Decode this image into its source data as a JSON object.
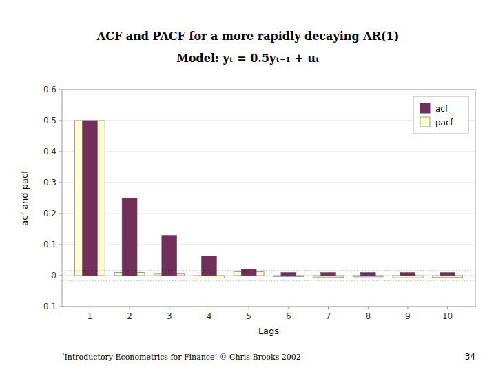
{
  "chart_data": {
    "type": "bar",
    "title": "ACF and PACF for a more rapidly decaying AR(1)",
    "subtitle": "Model: yₜ = 0.5yₜ₋₁ + uₜ",
    "x_label": "Lags",
    "y_label": "acf and pacf",
    "x": [
      1,
      2,
      3,
      4,
      5,
      6,
      7,
      8,
      9,
      10
    ],
    "series": [
      {
        "name": "acf",
        "color": "#722F5A",
        "values": [
          0.5,
          0.25,
          0.13,
          0.063,
          0.02,
          0.01,
          0.01,
          0.01,
          0.01,
          0.01
        ]
      },
      {
        "name": "pacf",
        "color": "#FFFFCC",
        "values": [
          0.5,
          0.01,
          0.005,
          -0.008,
          0.012,
          -0.003,
          -0.005,
          -0.004,
          -0.007,
          -0.006
        ]
      }
    ],
    "reference_lines": [
      0.015,
      -0.015
    ],
    "xlim": [
      0.3,
      10.7
    ],
    "xticks": [
      1,
      2,
      3,
      4,
      5,
      6,
      7,
      8,
      9,
      10
    ],
    "ylim": [
      -0.1,
      0.6
    ],
    "yticks": [
      -0.1,
      0,
      0.1,
      0.2,
      0.3,
      0.4,
      0.5,
      0.6
    ],
    "grid": true,
    "legend": "top-right",
    "annotations": [
      "‘Introductory Econometrics for Finance’ © Chris Brooks 2002",
      "34"
    ]
  }
}
